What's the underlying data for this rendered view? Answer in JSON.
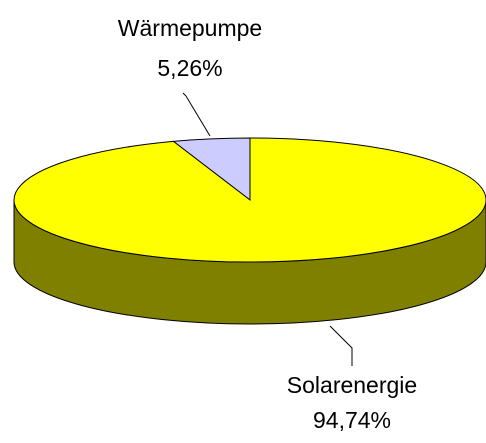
{
  "chart_data": {
    "type": "pie",
    "categories": [
      "Wärmepumpe",
      "Solarenergie"
    ],
    "values": [
      5.26,
      94.74
    ],
    "value_labels": [
      "5,26%",
      "94,74%"
    ],
    "colors": [
      "#ccccff",
      "#ffff00"
    ]
  }
}
